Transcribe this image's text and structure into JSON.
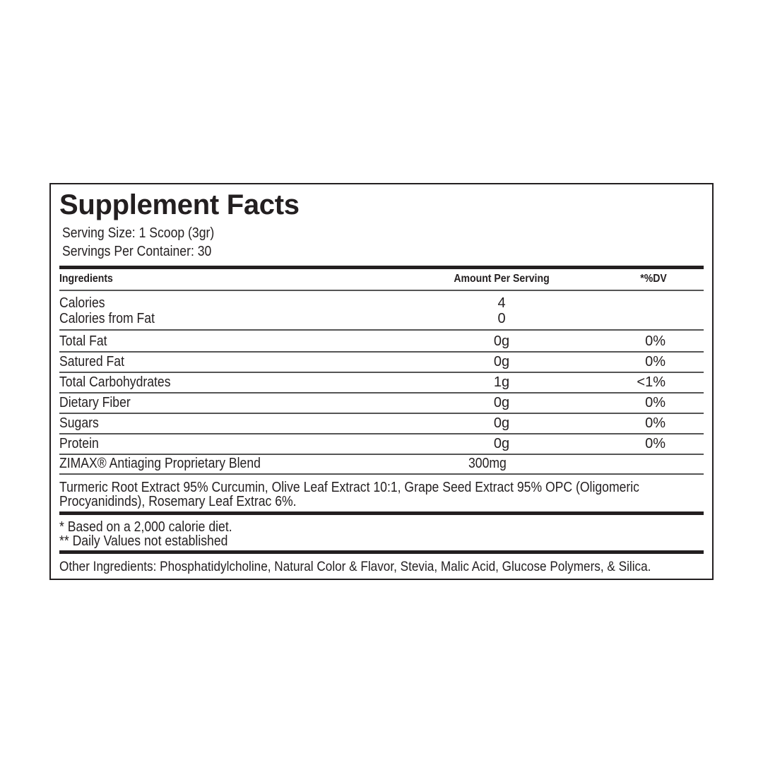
{
  "title": "Supplement Facts",
  "serving_size": "Serving Size: 1 Scoop (3gr)",
  "servings_per_container": "Servings Per Container: 30",
  "header": {
    "ingredients": "Ingredients",
    "amount": "Amount Per Serving",
    "dv": "*%DV"
  },
  "calories": {
    "label": "Calories",
    "amount": "4"
  },
  "calories_from_fat": {
    "label": "Calories from Fat",
    "amount": "0"
  },
  "rows": [
    {
      "label": "Total Fat",
      "amount": "0g",
      "dv": "0%"
    },
    {
      "label": "Satured Fat",
      "amount": "0g",
      "dv": "0%"
    },
    {
      "label": "Total Carbohydrates",
      "amount": "1g",
      "dv": "<1%"
    },
    {
      "label": "Dietary Fiber",
      "amount": "0g",
      "dv": "0%"
    },
    {
      "label": "Sugars",
      "amount": "0g",
      "dv": "0%"
    },
    {
      "label": "Protein",
      "amount": "0g",
      "dv": "0%"
    }
  ],
  "blend": {
    "label": "ZIMAX® Antiaging Proprietary Blend",
    "amount": "300mg"
  },
  "blend_ingredients": [
    "Turmeric Root Extract 95% Curcumin, Olive Leaf Extract 10:1, Grape Seed Extract 95% OPC (Oligomeric",
    "Procyanidinds), Rosemary Leaf Extrac 6%."
  ],
  "footnotes": [
    "* Based on a 2,000 calorie diet.",
    "** Daily Values not established"
  ],
  "other_ingredients": "Other Ingredients: Phosphatidylcholine, Natural Color & Flavor, Stevia, Malic Acid, Glucose Polymers, & Silica."
}
